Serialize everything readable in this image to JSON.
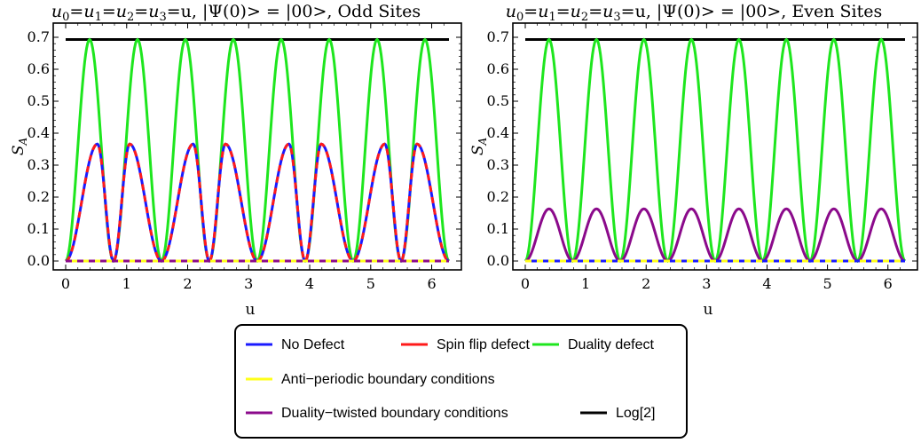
{
  "chart_data": [
    {
      "type": "line",
      "title_parts": [
        "u",
        "0",
        "=",
        "u",
        "1",
        "=",
        "u",
        "2",
        "=",
        "u",
        "3",
        "=u, |Ψ(0)> = |00>, Odd Sites"
      ],
      "xlabel": "u",
      "ylabel": "S",
      "ylabel_sub": "A",
      "xlim": [
        0,
        6.283
      ],
      "ylim": [
        0,
        0.7
      ],
      "xticks": [
        0,
        1,
        2,
        3,
        4,
        5,
        6
      ],
      "yticks": [
        0.0,
        0.1,
        0.2,
        0.3,
        0.4,
        0.5,
        0.6,
        0.7
      ],
      "series": [
        {
          "name": "Log[2]",
          "color": "#000000",
          "style": "solid",
          "x": [
            0,
            6.283
          ],
          "y": [
            0.693,
            0.693
          ]
        },
        {
          "name": "Duality defect",
          "color": "#1ee61e",
          "style": "solid",
          "x": [
            0,
            0.393,
            0.785,
            1.178,
            1.571,
            1.963,
            2.356,
            2.749,
            3.142,
            3.534,
            3.927,
            4.32,
            4.712,
            5.105,
            5.498,
            5.89,
            6.283
          ],
          "y": [
            0,
            0.693,
            0,
            0.693,
            0,
            0.693,
            0,
            0.693,
            0,
            0.693,
            0,
            0.693,
            0,
            0.693,
            0,
            0.693,
            0
          ]
        },
        {
          "name": "No Defect",
          "color": "#1a1aff",
          "style": "solid",
          "x": [
            0,
            0.52,
            0.785,
            1.05,
            1.571,
            2.09,
            2.356,
            2.62,
            3.142,
            3.66,
            3.927,
            4.19,
            4.712,
            5.23,
            5.498,
            5.76,
            6.283
          ],
          "y": [
            0,
            0.366,
            0,
            0.366,
            0,
            0.366,
            0,
            0.366,
            0,
            0.366,
            0,
            0.366,
            0,
            0.366,
            0,
            0.366,
            0
          ]
        },
        {
          "name": "Spin flip defect",
          "color": "#ff1a1a",
          "style": "dashed",
          "x": [
            0,
            0.52,
            0.785,
            1.05,
            1.571,
            2.09,
            2.356,
            2.62,
            3.142,
            3.66,
            3.927,
            4.19,
            4.712,
            5.23,
            5.498,
            5.76,
            6.283
          ],
          "y": [
            0,
            0.366,
            0,
            0.366,
            0,
            0.366,
            0,
            0.366,
            0,
            0.366,
            0,
            0.366,
            0,
            0.366,
            0,
            0.366,
            0
          ]
        },
        {
          "name": "Anti-periodic boundary conditions",
          "color": "#ffff1a",
          "style": "solid",
          "x": [
            0,
            6.283
          ],
          "y": [
            0,
            0
          ]
        },
        {
          "name": "Duality-twisted boundary conditions",
          "color": "#8b0a8b",
          "style": "dashed",
          "x": [
            0,
            6.283
          ],
          "y": [
            0,
            0
          ]
        }
      ]
    },
    {
      "type": "line",
      "title_parts": [
        "u",
        "0",
        "=",
        "u",
        "1",
        "=",
        "u",
        "2",
        "=",
        "u",
        "3",
        "=u, |Ψ(0)> = |00>, Even Sites"
      ],
      "xlabel": "u",
      "ylabel": "S",
      "ylabel_sub": "A",
      "xlim": [
        0,
        6.283
      ],
      "ylim": [
        0,
        0.7
      ],
      "xticks": [
        0,
        1,
        2,
        3,
        4,
        5,
        6
      ],
      "yticks": [
        0.0,
        0.1,
        0.2,
        0.3,
        0.4,
        0.5,
        0.6,
        0.7
      ],
      "series": [
        {
          "name": "Log[2]",
          "color": "#000000",
          "style": "solid",
          "x": [
            0,
            6.283
          ],
          "y": [
            0.693,
            0.693
          ]
        },
        {
          "name": "Duality defect",
          "color": "#1ee61e",
          "style": "solid",
          "x": [
            0,
            0.393,
            0.785,
            1.178,
            1.571,
            1.963,
            2.356,
            2.749,
            3.142,
            3.534,
            3.927,
            4.32,
            4.712,
            5.105,
            5.498,
            5.89,
            6.283
          ],
          "y": [
            0,
            0.693,
            0,
            0.693,
            0,
            0.693,
            0,
            0.693,
            0,
            0.693,
            0,
            0.693,
            0,
            0.693,
            0,
            0.693,
            0
          ]
        },
        {
          "name": "Duality-twisted boundary conditions",
          "color": "#8b0a8b",
          "style": "solid",
          "x": [
            0,
            0.393,
            0.785,
            1.178,
            1.571,
            1.963,
            2.356,
            2.749,
            3.142,
            3.534,
            3.927,
            4.32,
            4.712,
            5.105,
            5.498,
            5.89,
            6.283
          ],
          "y": [
            0,
            0.163,
            0,
            0.163,
            0,
            0.163,
            0,
            0.163,
            0,
            0.163,
            0,
            0.163,
            0,
            0.163,
            0,
            0.163,
            0
          ]
        },
        {
          "name": "No Defect",
          "color": "#1a1aff",
          "style": "solid",
          "x": [
            0,
            6.283
          ],
          "y": [
            0,
            0
          ]
        },
        {
          "name": "Spin flip defect",
          "color": "#ff1a1a",
          "style": "dashed",
          "x": [
            0,
            6.283
          ],
          "y": [
            0,
            0
          ]
        },
        {
          "name": "Anti-periodic boundary conditions",
          "color": "#ffff1a",
          "style": "dashed",
          "x": [
            0,
            6.283
          ],
          "y": [
            0,
            0
          ]
        }
      ]
    }
  ],
  "legend": {
    "placement": "bottom-center",
    "rows": [
      [
        {
          "label": "No Defect",
          "color": "#1a1aff"
        },
        {
          "label": "Spin flip defect",
          "color": "#ff1a1a"
        },
        {
          "label": "Duality defect",
          "color": "#1ee61e"
        }
      ],
      [
        {
          "label": "Anti−periodic boundary conditions",
          "color": "#ffff1a"
        }
      ],
      [
        {
          "label": "Duality−twisted boundary conditions",
          "color": "#8b0a8b"
        },
        {
          "label": "Log[2]",
          "color": "#000000"
        }
      ]
    ]
  }
}
